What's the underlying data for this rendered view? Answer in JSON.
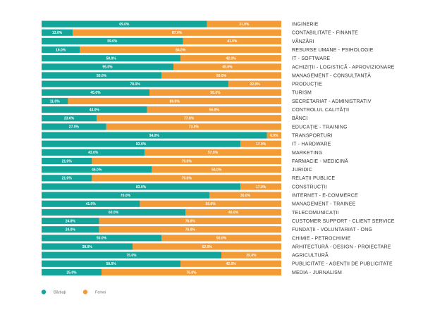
{
  "chart_data": {
    "type": "bar",
    "orientation": "horizontal",
    "stacked": true,
    "percent": true,
    "xlim": [
      0,
      100
    ],
    "colors": {
      "Bărbați": "#14a59a",
      "Femei": "#f39b36"
    },
    "legend_placement": "bottom-left",
    "categories": [
      "INGINERIE",
      "CONTABILITATE - FINANȚE",
      "VÂNZĂRI",
      "RESURSE UMANE - PSIHOLOGIE",
      "IT - SOFTWARE",
      "ACHIZIȚII - LOGISTICĂ - APROVIZIONARE",
      "MANAGEMENT - CONSULTANȚĂ",
      "PRODUCȚIE",
      "TURISM",
      "SECRETARIAT - ADMINISTRATIV",
      "CONTROLUL CALITĂȚII",
      "BĂNCI",
      "EDUCAȚIE - TRAINING",
      "TRANSPORTURI",
      "IT - HARDWARE",
      "MARKETING",
      "FARMACIE - MEDICINĂ",
      "JURIDIC",
      "RELAȚII PUBLICE",
      "CONSTRUCȚII",
      "INTERNET - E-COMMERCE",
      "MANAGEMENT - TRAINEE",
      "TELECOMUNICAȚII",
      "CUSTOMER SUPPORT - CLIENT SERVICE",
      "FUNDAȚII - VOLUNTARIAT - ONG",
      "CHIMIE - PETROCHIMIE",
      "ARHITECTURĂ - DESIGN - PROIECTARE",
      "AGRICULTURĂ",
      "PUBLICITATE - AGENȚII DE PUBLICITATE",
      "MEDIA - JURNALISM"
    ],
    "series": [
      {
        "name": "Bărbați",
        "values": [
          69.0,
          13.0,
          59.0,
          16.0,
          58.0,
          55.0,
          50.0,
          78.0,
          45.0,
          11.0,
          44.0,
          23.0,
          27.0,
          94.0,
          83.0,
          43.0,
          21.0,
          46.0,
          21.0,
          83.0,
          70.0,
          41.0,
          60.0,
          24.0,
          24.0,
          50.0,
          38.0,
          75.0,
          58.0,
          25.0
        ],
        "labels": [
          "69.0%",
          "13.0%",
          "59.0%",
          "16.0%",
          "58.0%",
          "55.0%",
          "50.0%",
          "78.0%",
          "45.0%",
          "11.0%",
          "44.0%",
          "23.0%",
          "27.0%",
          "94.0%",
          "83.0%",
          "43.0%",
          "21.0%",
          "46.0%",
          "21.0%",
          "83.0%",
          "70.0%",
          "41.0%",
          "60.0%",
          "24.0%",
          "24.0%",
          "50.0%",
          "38.0%",
          "75.0%",
          "58.0%",
          "25.0%"
        ]
      },
      {
        "name": "Femei",
        "values": [
          31.0,
          87.0,
          41.0,
          84.0,
          42.0,
          45.0,
          50.0,
          22.0,
          55.0,
          89.0,
          56.0,
          77.0,
          73.0,
          6.0,
          17.0,
          57.0,
          79.0,
          54.0,
          79.0,
          17.0,
          30.0,
          59.0,
          40.0,
          76.0,
          76.0,
          50.0,
          62.0,
          25.0,
          42.0,
          75.0
        ],
        "labels": [
          "31.0%",
          "87.0%",
          "41.0%",
          "84.0%",
          "42.0%",
          "45.0%",
          "50.0%",
          "22.0%",
          "55.0%",
          "89.0%",
          "56.0%",
          "77.0%",
          "73.0%",
          "6.0%",
          "17.0%",
          "57.0%",
          "79.0%",
          "54.0%",
          "79.0%",
          "17.0%",
          "30.0%",
          "59.0%",
          "40.0%",
          "76.0%",
          "76.0%",
          "50.0%",
          "62.0%",
          "25.0%",
          "42.0%",
          "75.0%"
        ]
      }
    ],
    "legend": [
      {
        "name": "Bărbați",
        "color": "#14a59a"
      },
      {
        "name": "Femei",
        "color": "#f39b36"
      }
    ]
  }
}
